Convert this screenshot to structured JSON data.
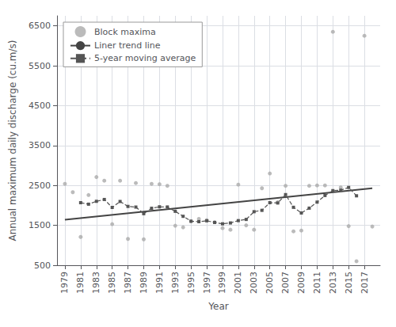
{
  "chart_data": {
    "type": "scatter",
    "xlabel": "Year",
    "ylabel": "Annual maximum daily discharge (cu.m/s)",
    "xlim": [
      1978,
      2019
    ],
    "ylim": [
      500,
      6750
    ],
    "xticks": [
      1979,
      1981,
      1983,
      1985,
      1987,
      1989,
      1991,
      1993,
      1995,
      1997,
      1999,
      2001,
      2003,
      2005,
      2007,
      2009,
      2011,
      2013,
      2015,
      2017
    ],
    "yticks": [
      500,
      1500,
      2500,
      3500,
      4500,
      5500,
      6500
    ],
    "grid": true,
    "legend": "upper left",
    "series": [
      {
        "name": "Block maxima",
        "type": "scatter",
        "color": "#aaaaaa",
        "marker": "circle",
        "x": [
          1979,
          1980,
          1981,
          1982,
          1983,
          1984,
          1985,
          1986,
          1987,
          1988,
          1989,
          1990,
          1991,
          1992,
          1993,
          1994,
          1995,
          1996,
          1997,
          1998,
          1999,
          2000,
          2001,
          2002,
          2003,
          2004,
          2005,
          2006,
          2007,
          2008,
          2009,
          2010,
          2011,
          2012,
          2013,
          2014,
          2015,
          2016,
          2017,
          2018
        ],
        "values": [
          2540,
          2330,
          1210,
          2260,
          2710,
          2620,
          1530,
          2620,
          1160,
          2560,
          1150,
          2540,
          2530,
          2490,
          1490,
          1450,
          1600,
          1660,
          1630,
          1580,
          1430,
          1390,
          2520,
          1500,
          1390,
          2430,
          2800,
          2080,
          2490,
          1350,
          1370,
          2490,
          2500,
          2500,
          6350,
          2450,
          1480,
          600,
          6250,
          1470
        ]
      },
      {
        "name": "Liner trend line",
        "type": "line",
        "color": "#444444",
        "line_style": "solid",
        "x": [
          1979,
          2018
        ],
        "values": [
          1640,
          2430
        ]
      },
      {
        "name": "5-year moving average",
        "type": "line",
        "color": "#555555",
        "line_style": "dashed",
        "marker": "square",
        "x": [
          1981,
          1982,
          1983,
          1984,
          1985,
          1986,
          1987,
          1988,
          1989,
          1990,
          1991,
          1992,
          1993,
          1994,
          1995,
          1996,
          1997,
          1998,
          1999,
          2000,
          2001,
          2002,
          2003,
          2004,
          2005,
          2006,
          2007,
          2008,
          2009,
          2010,
          2011,
          2012,
          2013,
          2014,
          2015,
          2016
        ],
        "values": [
          2068,
          2030,
          2102,
          2148,
          1948,
          2098,
          1974,
          1958,
          1792,
          1928,
          1964,
          1960,
          1852,
          1726,
          1604,
          1592,
          1614,
          1572,
          1538,
          1560,
          1618,
          1648,
          1842,
          1876,
          2068,
          2060,
          2270,
          1952,
          1810,
          1931,
          2082,
          2248,
          2370,
          2380,
          2450,
          2240
        ]
      }
    ]
  }
}
